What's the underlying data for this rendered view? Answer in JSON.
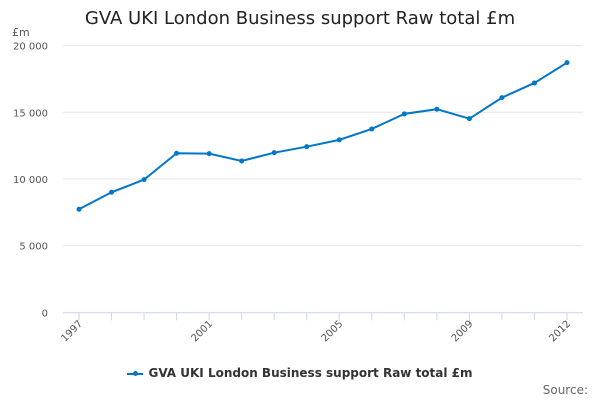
{
  "chart_data": {
    "type": "line",
    "title": "GVA UKI London Business support Raw total £m",
    "ylabel": "£m",
    "xlabel": "",
    "x": [
      1997,
      1998,
      1999,
      2000,
      2001,
      2002,
      2003,
      2004,
      2005,
      2006,
      2007,
      2008,
      2009,
      2010,
      2011,
      2012
    ],
    "series": [
      {
        "name": "GVA UKI London Business support Raw total £m",
        "values": [
          7730,
          9000,
          9950,
          11930,
          11900,
          11350,
          11970,
          12420,
          12930,
          13750,
          14880,
          15230,
          14520,
          16100,
          17200,
          18720
        ]
      }
    ],
    "ylim": [
      0,
      20000
    ],
    "yticks": [
      "0",
      "5 000",
      "10 000",
      "15 000",
      "20 000"
    ],
    "ytick_values": [
      0,
      5000,
      10000,
      15000,
      20000
    ],
    "xtick_labels": [
      "1997",
      "2001",
      "2005",
      "2009",
      "2012"
    ],
    "xtick_values": [
      1997,
      2001,
      2005,
      2009,
      2012
    ],
    "grid": true,
    "legend": "bottom",
    "color": "#0077c8",
    "source_label": "Source:"
  }
}
